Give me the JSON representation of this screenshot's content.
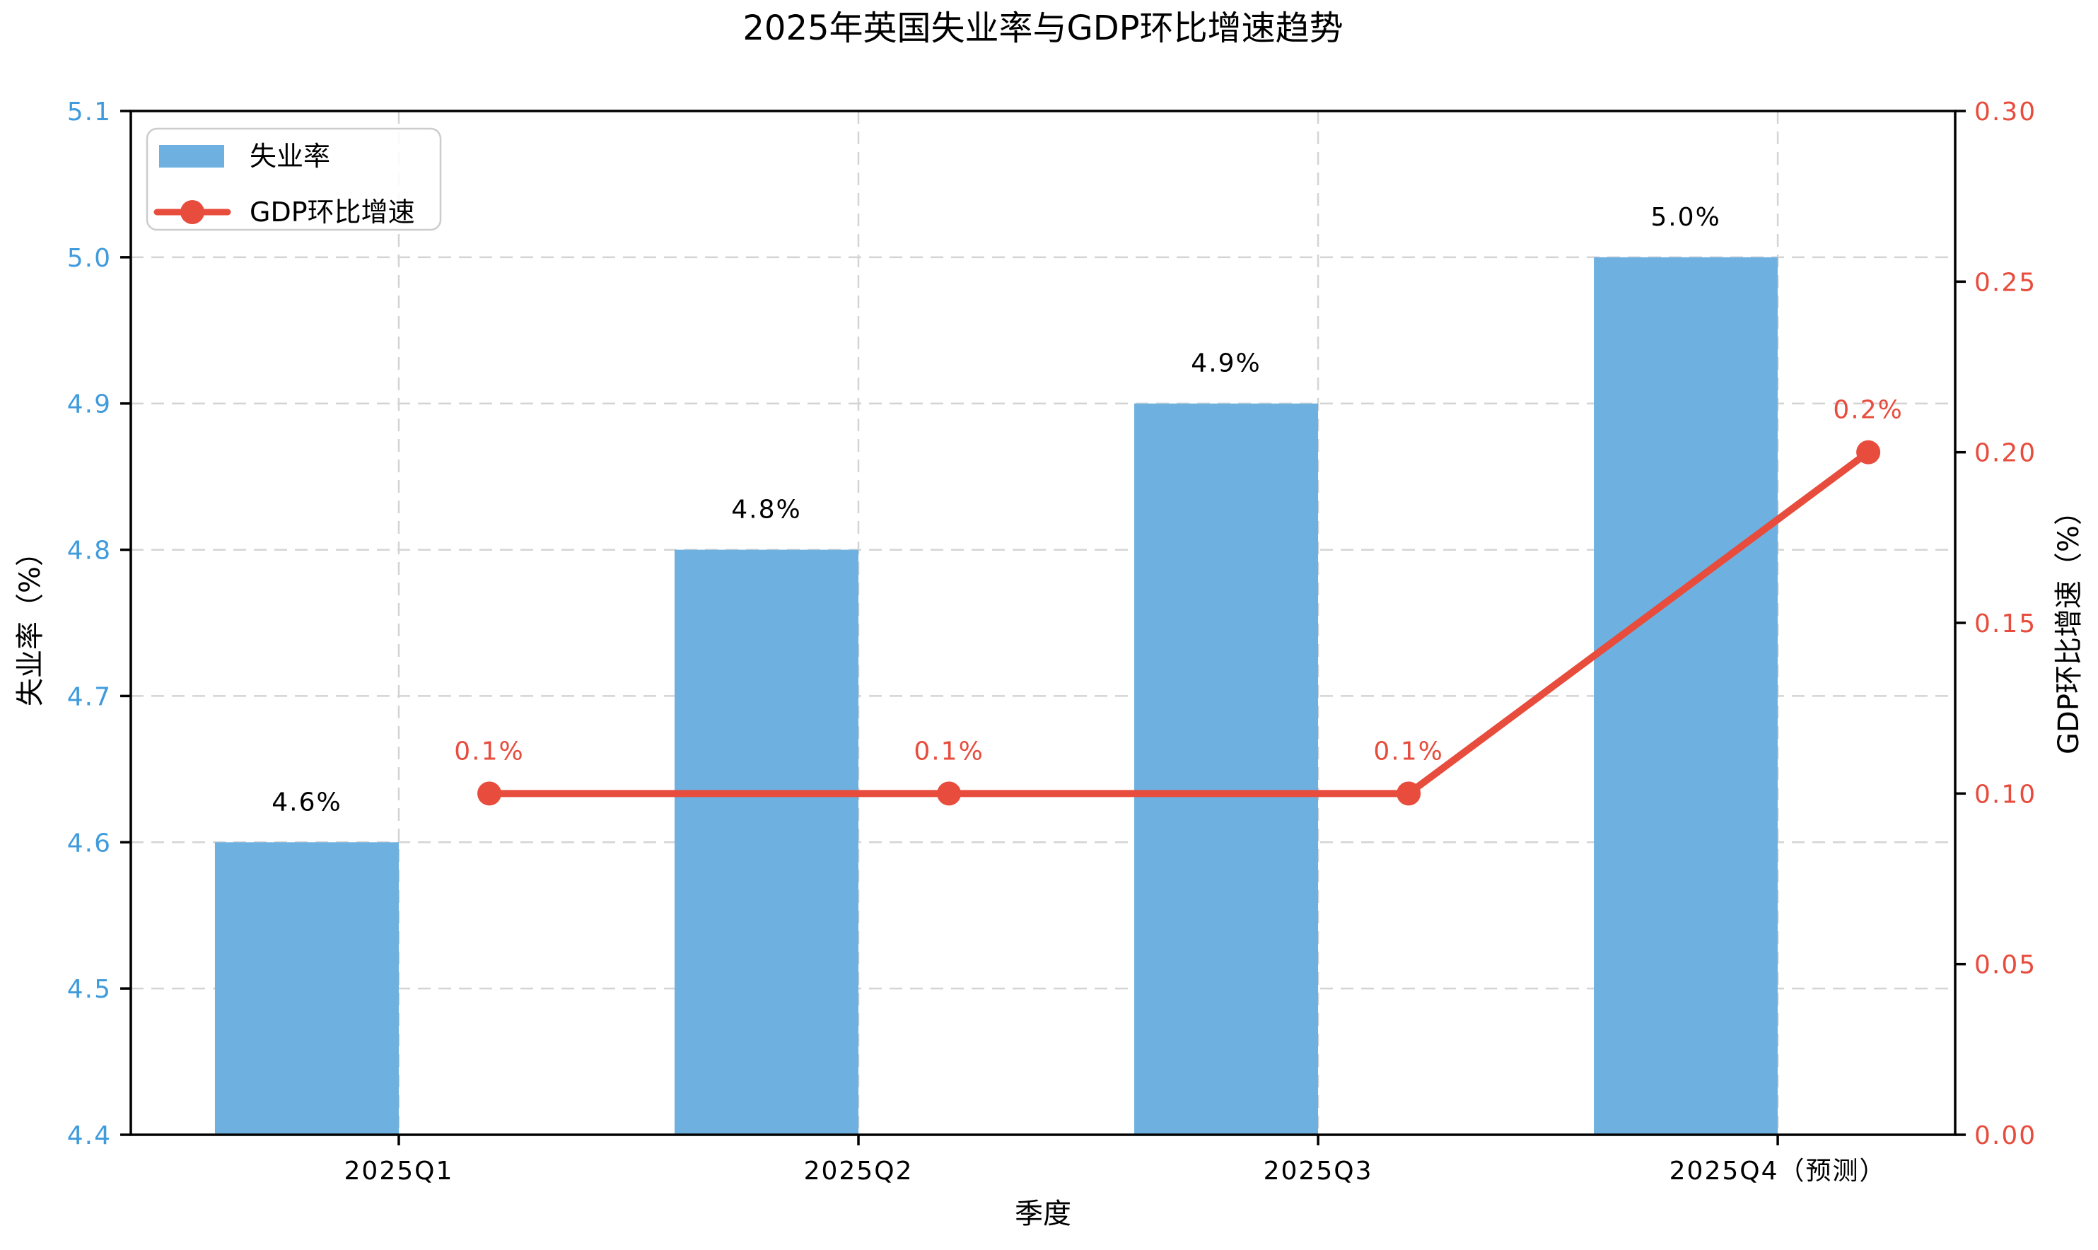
{
  "title": "2025年英国失业率与GDP环比增速趋势",
  "colors": {
    "bar_fill": "#6eb1e0",
    "line_stroke": "#e74c3c",
    "left_axis_text": "#3f9bdc",
    "right_axis_text": "#e74c3c",
    "grid": "#d4d4d4",
    "spine": "#000000",
    "legend_border": "#cccccc"
  },
  "legend": {
    "position": "upper-left",
    "items": [
      {
        "label": "失业率",
        "marker": "bar-swatch"
      },
      {
        "label": "GDP环比增速",
        "marker": "line-with-dot"
      }
    ]
  },
  "chart_data": {
    "type": "combo-bar-line-dual-axis",
    "title": "2025年英国失业率与GDP环比增速趋势",
    "xlabel": "季度",
    "categories": [
      "2025Q1",
      "2025Q2",
      "2025Q3",
      "2025Q4（预测）"
    ],
    "series": [
      {
        "name": "失业率",
        "type": "bar",
        "axis": "left",
        "unit": "%",
        "color": "#6eb1e0",
        "values": [
          4.6,
          4.8,
          4.9,
          5.0
        ],
        "point_labels": [
          "4.6%",
          "4.8%",
          "4.9%",
          "5.0%"
        ]
      },
      {
        "name": "GDP环比增速",
        "type": "line",
        "axis": "right",
        "unit": "%",
        "color": "#e74c3c",
        "values": [
          0.1,
          0.1,
          0.1,
          0.2
        ],
        "point_labels": [
          "0.1%",
          "0.1%",
          "0.1%",
          "0.2%"
        ]
      }
    ],
    "y_left": {
      "label": "失业率（%）",
      "min": 4.4,
      "max": 5.1,
      "ticks": [
        5.1,
        5.0,
        4.9,
        4.8,
        4.7,
        4.6,
        4.5,
        4.4
      ],
      "tick_decimals": 1,
      "text_color": "#3f9bdc"
    },
    "y_right": {
      "label": "GDP环比增速（%）",
      "min": 0.0,
      "max": 0.3,
      "ticks": [
        0.3,
        0.25,
        0.2,
        0.15,
        0.1,
        0.05,
        0.0
      ],
      "tick_decimals": 2,
      "text_color": "#e74c3c"
    },
    "grid": {
      "show": true,
      "style": "dashed",
      "color": "#d4d4d4"
    },
    "legend_position": "upper-left"
  }
}
